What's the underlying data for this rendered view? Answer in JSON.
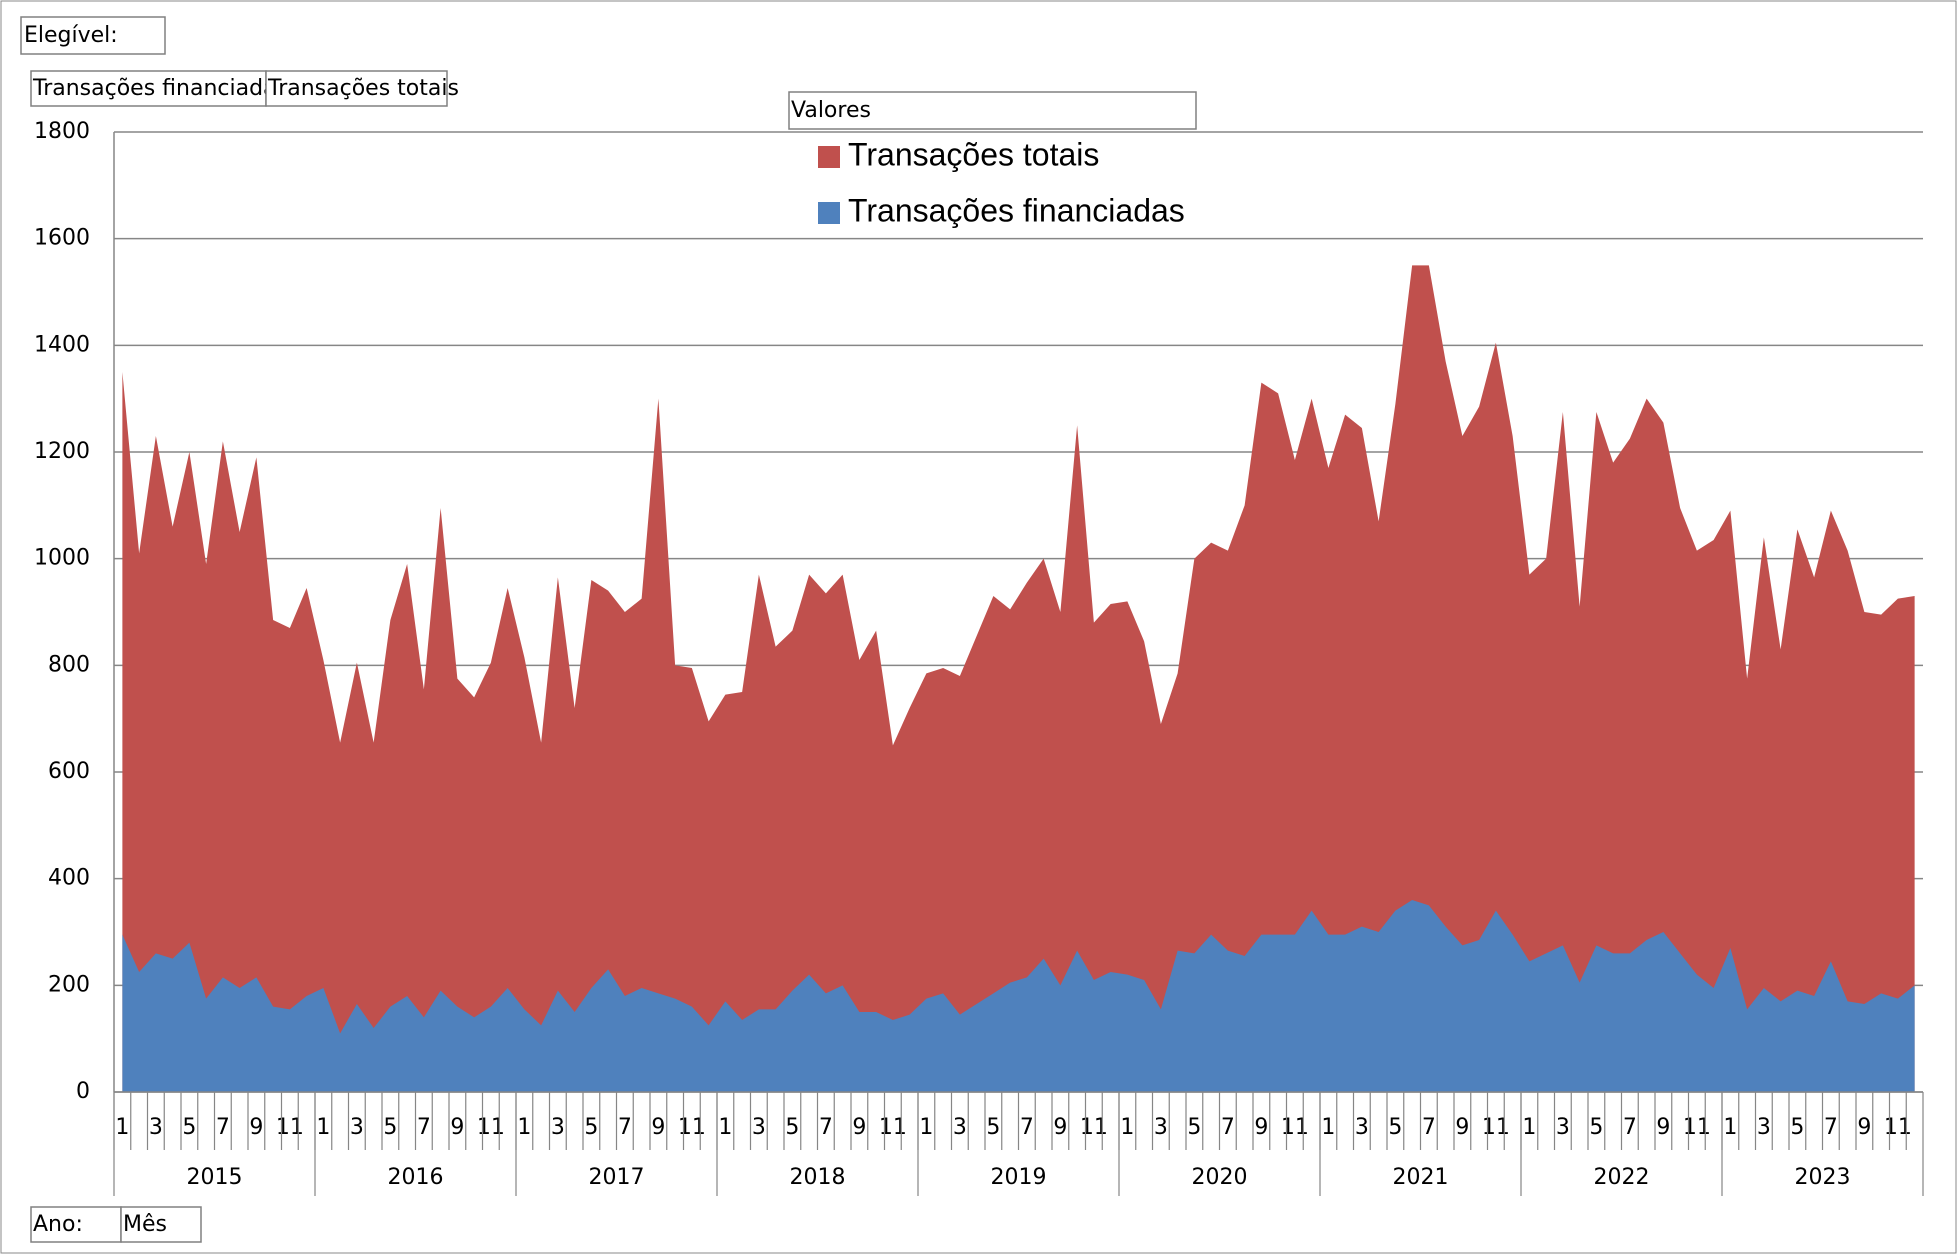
{
  "chart_data": {
    "type": "area",
    "filter_label": "Elegível:",
    "values_label": "Valores",
    "axis_fields": [
      "Ano:",
      "Mês"
    ],
    "ylim": [
      0,
      1800
    ],
    "yticks": [
      0,
      200,
      400,
      600,
      800,
      1000,
      1200,
      1400,
      1600,
      1800
    ],
    "grid": true,
    "years": [
      "2015",
      "2016",
      "2017",
      "2018",
      "2019",
      "2020",
      "2021",
      "2022",
      "2023"
    ],
    "categories": [
      1,
      null,
      3,
      null,
      5,
      null,
      7,
      null,
      9,
      null,
      11,
      null,
      1,
      null,
      3,
      null,
      5,
      null,
      7,
      null,
      9,
      null,
      11,
      null,
      1,
      null,
      3,
      null,
      5,
      null,
      7,
      null,
      9,
      null,
      11,
      null,
      1,
      null,
      3,
      null,
      5,
      null,
      7,
      null,
      9,
      null,
      11,
      null,
      1,
      null,
      3,
      null,
      5,
      null,
      7,
      null,
      9,
      null,
      11,
      null,
      1,
      null,
      3,
      null,
      5,
      null,
      7,
      null,
      9,
      null,
      11,
      null,
      1,
      null,
      3,
      null,
      5,
      null,
      7,
      null,
      9,
      null,
      11,
      null,
      1,
      null,
      3,
      null,
      5,
      null,
      7,
      null,
      9,
      null,
      11,
      null,
      1,
      null,
      3,
      null,
      5,
      null,
      7,
      null,
      9,
      null,
      11,
      null
    ],
    "series": [
      {
        "name": "Transações totais",
        "color": "#c0504d",
        "values": [
          1350,
          1010,
          1230,
          1060,
          1200,
          990,
          1220,
          1050,
          1190,
          885,
          870,
          945,
          810,
          655,
          805,
          655,
          885,
          990,
          755,
          1095,
          775,
          740,
          805,
          945,
          815,
          655,
          965,
          720,
          960,
          940,
          900,
          925,
          1300,
          800,
          795,
          695,
          745,
          750,
          970,
          835,
          865,
          970,
          935,
          970,
          810,
          865,
          650,
          720,
          785,
          795,
          780,
          855,
          930,
          905,
          955,
          1000,
          900,
          1250,
          880,
          915,
          920,
          845,
          690,
          785,
          1000,
          1030,
          1015,
          1100,
          1330,
          1310,
          1185,
          1300,
          1170,
          1270,
          1245,
          1070,
          1290,
          1550,
          1550,
          1370,
          1230,
          1285,
          1405,
          1230,
          970,
          1000,
          1275,
          910,
          1275,
          1180,
          1225,
          1300,
          1255,
          1095,
          1015,
          1035,
          1090,
          775,
          1040,
          830,
          1055,
          965,
          1090,
          1015,
          900,
          895,
          925,
          930
        ]
      },
      {
        "name": "Transações financiadas",
        "color": "#4f81bd",
        "values": [
          295,
          225,
          260,
          250,
          280,
          175,
          215,
          195,
          215,
          160,
          155,
          180,
          195,
          110,
          165,
          120,
          160,
          180,
          140,
          190,
          160,
          140,
          160,
          195,
          155,
          125,
          190,
          150,
          195,
          230,
          180,
          195,
          185,
          175,
          160,
          125,
          170,
          135,
          155,
          155,
          190,
          220,
          185,
          200,
          150,
          150,
          135,
          145,
          175,
          185,
          145,
          165,
          185,
          205,
          215,
          250,
          200,
          265,
          210,
          225,
          220,
          210,
          155,
          265,
          260,
          295,
          265,
          255,
          295,
          295,
          295,
          340,
          295,
          295,
          310,
          300,
          340,
          360,
          350,
          310,
          275,
          285,
          340,
          295,
          245,
          260,
          275,
          205,
          275,
          260,
          260,
          285,
          300,
          260,
          220,
          195,
          270,
          155,
          195,
          170,
          190,
          180,
          245,
          170,
          165,
          185,
          175,
          200
        ]
      }
    ]
  }
}
